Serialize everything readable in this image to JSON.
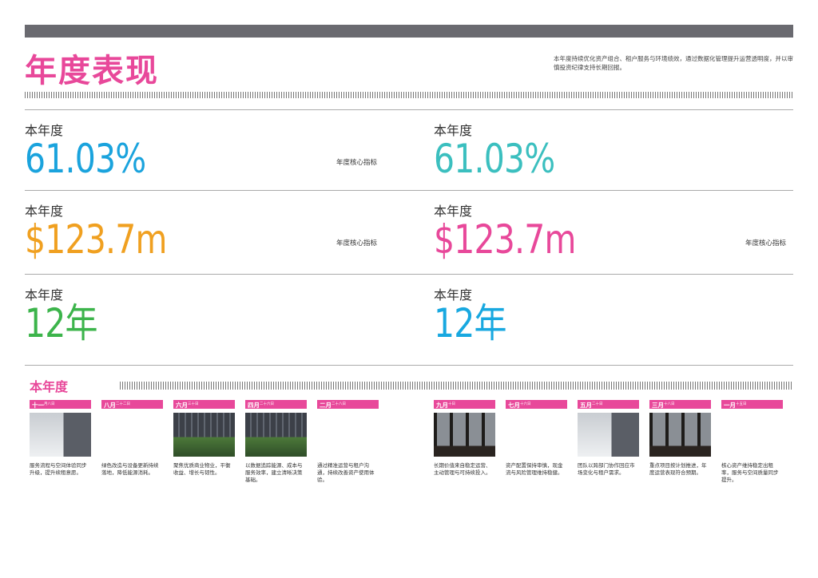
{
  "header": {
    "title": "年度表现",
    "description": "本年度持续优化资产组合、租户服务与环境绩效，通过数据化管理提升运营透明度，并以审慎投资纪律支持长期回报。"
  },
  "stats": [
    {
      "label": "本年度",
      "value": "61.03%",
      "note": "年度核心指标"
    },
    {
      "label": "本年度",
      "value": "61.03%"
    },
    {
      "label": "本年度",
      "value": "$123.7m",
      "note": "年度核心指标"
    },
    {
      "label": "本年度",
      "value": "$123.7m",
      "note": "年度核心指标"
    },
    {
      "label": "本年度",
      "value": "12年"
    },
    {
      "label": "本年度",
      "value": "12年"
    }
  ],
  "timeline": {
    "title": "本年度",
    "items": [
      {
        "month": "十一",
        "day": "月八日",
        "text": "服务流程与空间体验同步升级，提升续租意愿。"
      },
      {
        "month": "八月",
        "day": "二十二日",
        "text": "绿色改造与设备更新持续落地，降低能源消耗。"
      },
      {
        "month": "六月",
        "day": "三十日",
        "text": "聚焦优质商业物业，平衡收益、增长与韧性。"
      },
      {
        "month": "四月",
        "day": "二十六日",
        "text": "以数据追踪能源、成本与服务效率，建立清晰决策基础。"
      },
      {
        "month": "二月",
        "day": "二十八日",
        "text": "通过精准运营与租户沟通，持续改善资产使用体验。"
      },
      {
        "month": "九月",
        "day": "十日",
        "text": "长期价值来自稳定运营、主动管理与可持续投入。"
      },
      {
        "month": "七月",
        "day": "十六日",
        "text": "资产配置保持审慎，现金流与风险管理维持稳健。"
      },
      {
        "month": "五月",
        "day": "二十日",
        "text": "团队以跨部门协作回应市场变化与租户需求。"
      },
      {
        "month": "三月",
        "day": "十八日",
        "text": "重点项目按计划推进，年度运营表现符合预期。"
      },
      {
        "month": "一月",
        "day": "十五日",
        "text": "核心资产维持稳定出租率，服务与空间质量同步提升。"
      }
    ]
  }
}
